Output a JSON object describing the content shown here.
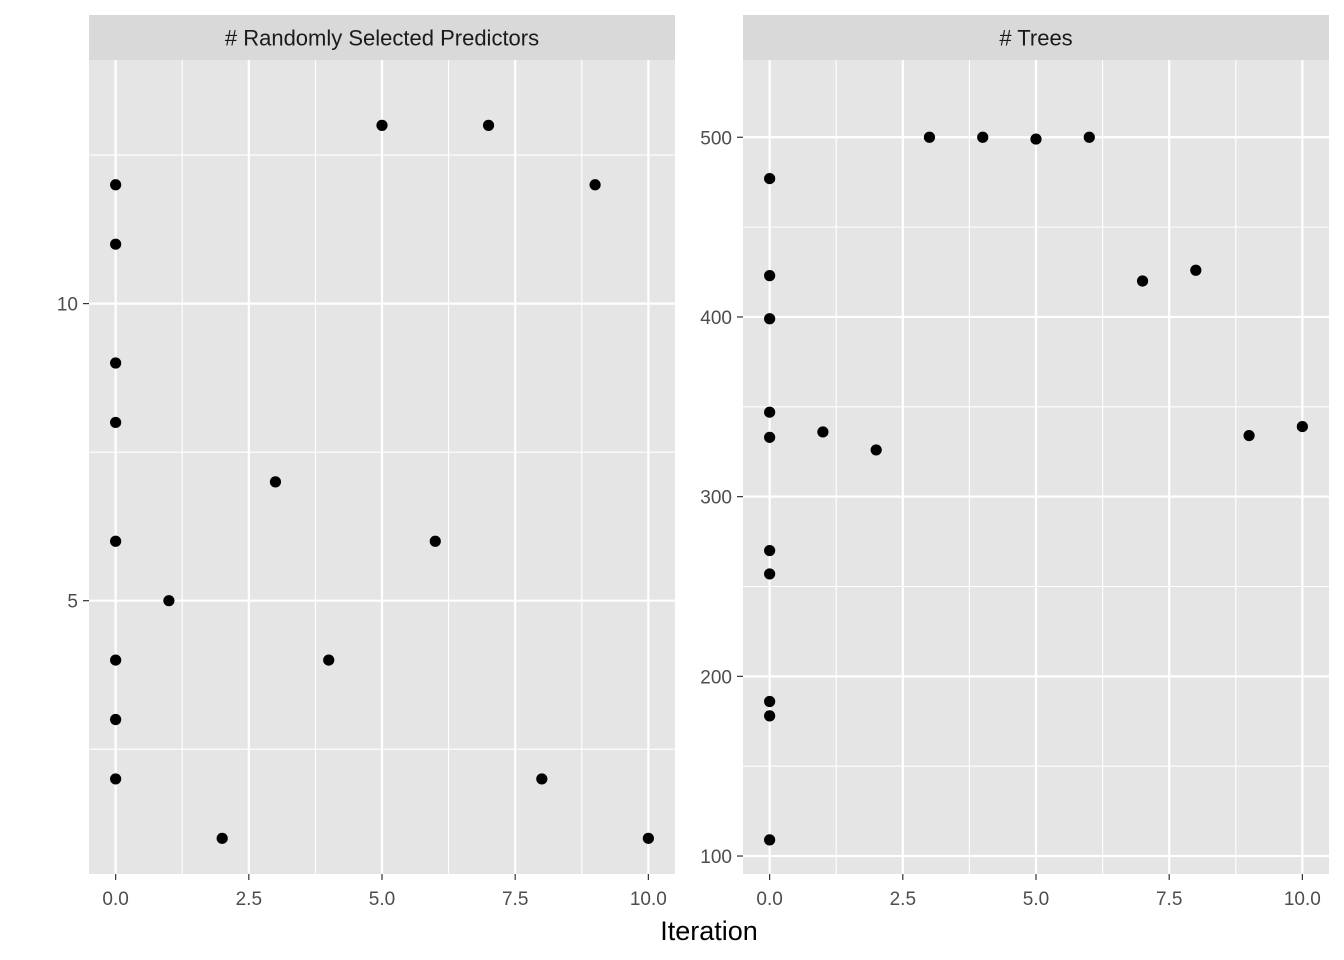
{
  "chart_data": {
    "type": "scatter",
    "xlabel": "Iteration",
    "facets": [
      {
        "title": "# Randomly Selected Predictors",
        "xlim": [
          -0.5,
          10.5
        ],
        "ylim": [
          0.4,
          14.1
        ],
        "x_ticks": [
          0,
          2.5,
          5,
          7.5,
          10
        ],
        "x_tick_labels": [
          "0.0",
          "2.5",
          "5.0",
          "7.5",
          "10.0"
        ],
        "y_ticks": [
          5,
          10
        ],
        "y_tick_labels": [
          "5",
          "10"
        ],
        "points": [
          {
            "x": 0,
            "y": 12
          },
          {
            "x": 0,
            "y": 11
          },
          {
            "x": 0,
            "y": 9
          },
          {
            "x": 0,
            "y": 8
          },
          {
            "x": 0,
            "y": 6
          },
          {
            "x": 0,
            "y": 4
          },
          {
            "x": 0,
            "y": 3
          },
          {
            "x": 0,
            "y": 2
          },
          {
            "x": 1,
            "y": 5
          },
          {
            "x": 2,
            "y": 1
          },
          {
            "x": 3,
            "y": 7
          },
          {
            "x": 4,
            "y": 4
          },
          {
            "x": 5,
            "y": 13
          },
          {
            "x": 6,
            "y": 6
          },
          {
            "x": 7,
            "y": 13
          },
          {
            "x": 8,
            "y": 2
          },
          {
            "x": 9,
            "y": 12
          },
          {
            "x": 10,
            "y": 1
          }
        ]
      },
      {
        "title": "# Trees",
        "xlim": [
          -0.5,
          10.5
        ],
        "ylim": [
          90,
          543
        ],
        "x_ticks": [
          0,
          2.5,
          5,
          7.5,
          10
        ],
        "x_tick_labels": [
          "0.0",
          "2.5",
          "5.0",
          "7.5",
          "10.0"
        ],
        "y_ticks": [
          100,
          200,
          300,
          400,
          500
        ],
        "y_tick_labels": [
          "100",
          "200",
          "300",
          "400",
          "500"
        ],
        "points": [
          {
            "x": 0,
            "y": 477
          },
          {
            "x": 0,
            "y": 423
          },
          {
            "x": 0,
            "y": 399
          },
          {
            "x": 0,
            "y": 347
          },
          {
            "x": 0,
            "y": 333
          },
          {
            "x": 0,
            "y": 270
          },
          {
            "x": 0,
            "y": 257
          },
          {
            "x": 0,
            "y": 186
          },
          {
            "x": 0,
            "y": 178
          },
          {
            "x": 0,
            "y": 109
          },
          {
            "x": 1,
            "y": 336
          },
          {
            "x": 2,
            "y": 326
          },
          {
            "x": 3,
            "y": 500
          },
          {
            "x": 4,
            "y": 500
          },
          {
            "x": 5,
            "y": 499
          },
          {
            "x": 6,
            "y": 500
          },
          {
            "x": 7,
            "y": 420
          },
          {
            "x": 8,
            "y": 426
          },
          {
            "x": 9,
            "y": 334
          },
          {
            "x": 10,
            "y": 339
          }
        ]
      }
    ],
    "grid": true,
    "colors": {
      "panel_background": "#e5e5e5",
      "strip_background": "#d9d9d9",
      "grid_line": "#ffffff",
      "point": "#000000"
    }
  }
}
